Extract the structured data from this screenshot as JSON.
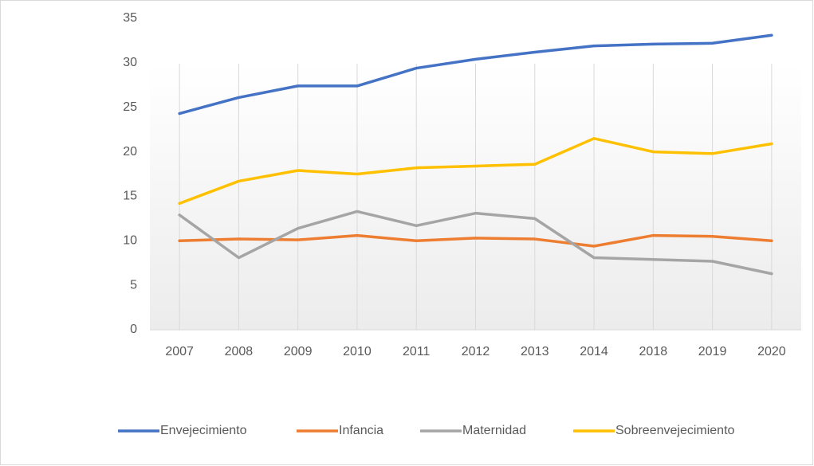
{
  "chart_data": {
    "type": "line",
    "categories": [
      "2007",
      "2008",
      "2009",
      "2010",
      "2011",
      "2012",
      "2013",
      "2014",
      "2018",
      "2019",
      "2020"
    ],
    "series": [
      {
        "name": "Envejecimiento",
        "color": "#4472c4",
        "values": [
          24.3,
          26.1,
          27.4,
          27.4,
          29.4,
          30.4,
          31.2,
          31.9,
          32.1,
          32.2,
          33.1
        ]
      },
      {
        "name": "Infancia",
        "color": "#ed7d31",
        "values": [
          10.0,
          10.2,
          10.1,
          10.6,
          10.0,
          10.3,
          10.2,
          9.4,
          10.6,
          10.5,
          10.0
        ]
      },
      {
        "name": "Maternidad",
        "color": "#a5a5a5",
        "values": [
          12.9,
          8.1,
          11.4,
          13.3,
          11.7,
          13.1,
          12.5,
          8.1,
          7.9,
          7.7,
          6.3
        ]
      },
      {
        "name": "Sobreenvejecimiento",
        "color": "#ffc000",
        "values": [
          14.2,
          16.7,
          17.9,
          17.5,
          18.2,
          18.4,
          18.6,
          21.5,
          20.0,
          19.8,
          20.9
        ]
      }
    ],
    "ylim": [
      0,
      35
    ],
    "yticks": [
      0,
      5,
      10,
      15,
      20,
      25,
      30,
      35
    ],
    "grid": true,
    "legend": "bottom"
  }
}
